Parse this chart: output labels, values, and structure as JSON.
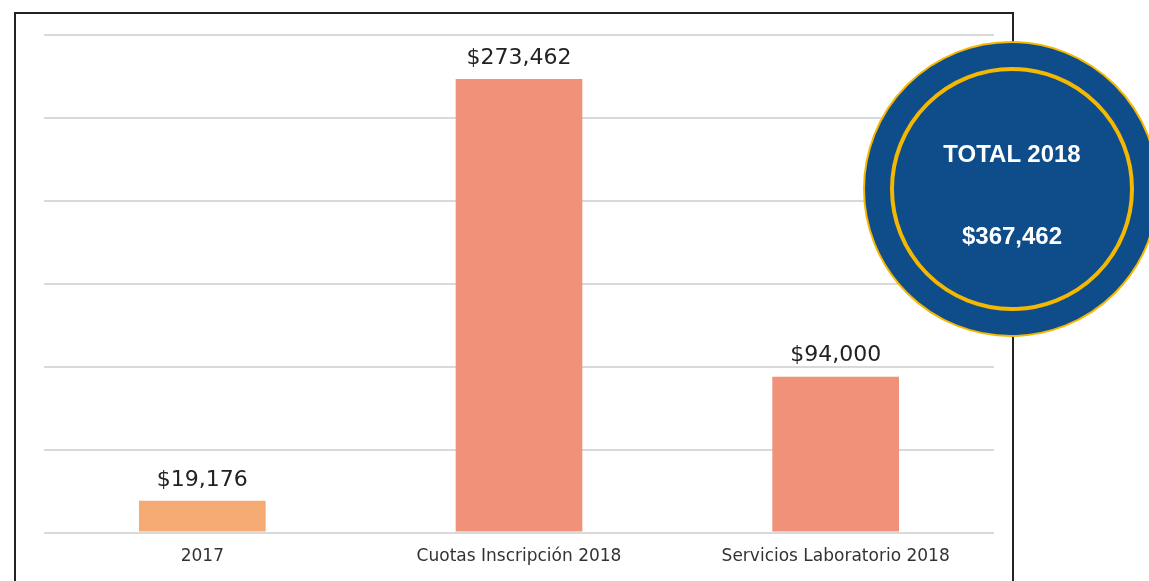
{
  "chart_data": {
    "type": "bar",
    "categories": [
      "2017",
      "Cuotas Inscripción 2018",
      "Servicios Laboratorio 2018"
    ],
    "values": [
      19176,
      273462,
      94000
    ],
    "colors": [
      "#f4aa72",
      "#f0917a",
      "#f0917a"
    ],
    "value_labels": [
      "$19,176",
      "$273,462",
      "$94,000"
    ],
    "ylim": [
      0,
      300000
    ],
    "yticks": [
      {
        "value": 0,
        "label": null
      },
      {
        "value": 50000,
        "label": null
      },
      {
        "value": 100000,
        "label": null
      },
      {
        "value": 150000,
        "label": null
      },
      {
        "value": 200000,
        "label": null
      },
      {
        "value": 250000,
        "label": null
      },
      {
        "value": 300000,
        "label": null
      }
    ],
    "grid": "y",
    "legend": false,
    "annotations": [
      "TOTAL 2018",
      "$367,462"
    ]
  }
}
